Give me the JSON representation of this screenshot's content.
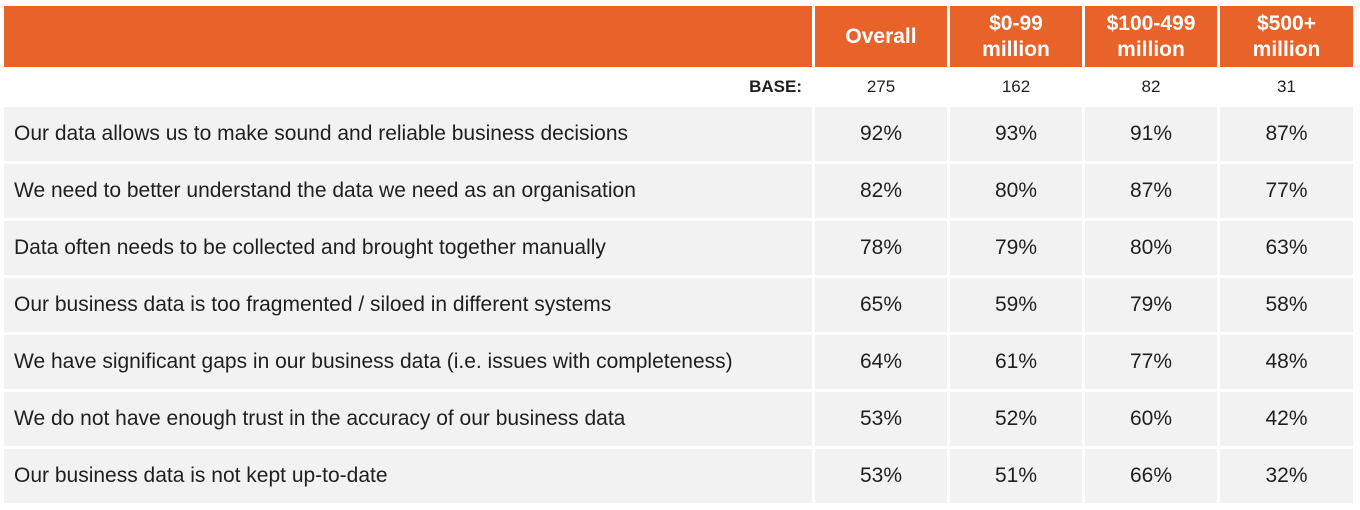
{
  "chart_data": {
    "type": "table",
    "columns": [
      "Overall",
      "$0-99 million",
      "$100-499 million",
      "$500+ million"
    ],
    "column_lines": [
      [
        "Overall"
      ],
      [
        "$0-99",
        "million"
      ],
      [
        "$100-499",
        "million"
      ],
      [
        "$500+",
        "million"
      ]
    ],
    "base_label": "BASE:",
    "base": [
      "275",
      "162",
      "82",
      "31"
    ],
    "rows": [
      {
        "label": "Our data allows us to make sound and reliable business decisions",
        "values": [
          "92%",
          "93%",
          "91%",
          "87%"
        ]
      },
      {
        "label": "We need to better understand the data we need as an organisation",
        "values": [
          "82%",
          "80%",
          "87%",
          "77%"
        ]
      },
      {
        "label": "Data often needs to be collected and brought together manually",
        "values": [
          "78%",
          "79%",
          "80%",
          "63%"
        ]
      },
      {
        "label": "Our business data is too fragmented / siloed in different systems",
        "values": [
          "65%",
          "59%",
          "79%",
          "58%"
        ]
      },
      {
        "label": "We have significant gaps in our business data (i.e. issues with completeness)",
        "values": [
          "64%",
          "61%",
          "77%",
          "48%"
        ]
      },
      {
        "label": "We do not have enough trust in the accuracy of our business data",
        "values": [
          "53%",
          "52%",
          "60%",
          "42%"
        ]
      },
      {
        "label": "Our business data is not kept up-to-date",
        "values": [
          "53%",
          "51%",
          "66%",
          "32%"
        ]
      }
    ]
  },
  "colors": {
    "header_bg": "#e8632a",
    "header_text": "#ffffff",
    "row_bg": "#f2f2f2"
  }
}
